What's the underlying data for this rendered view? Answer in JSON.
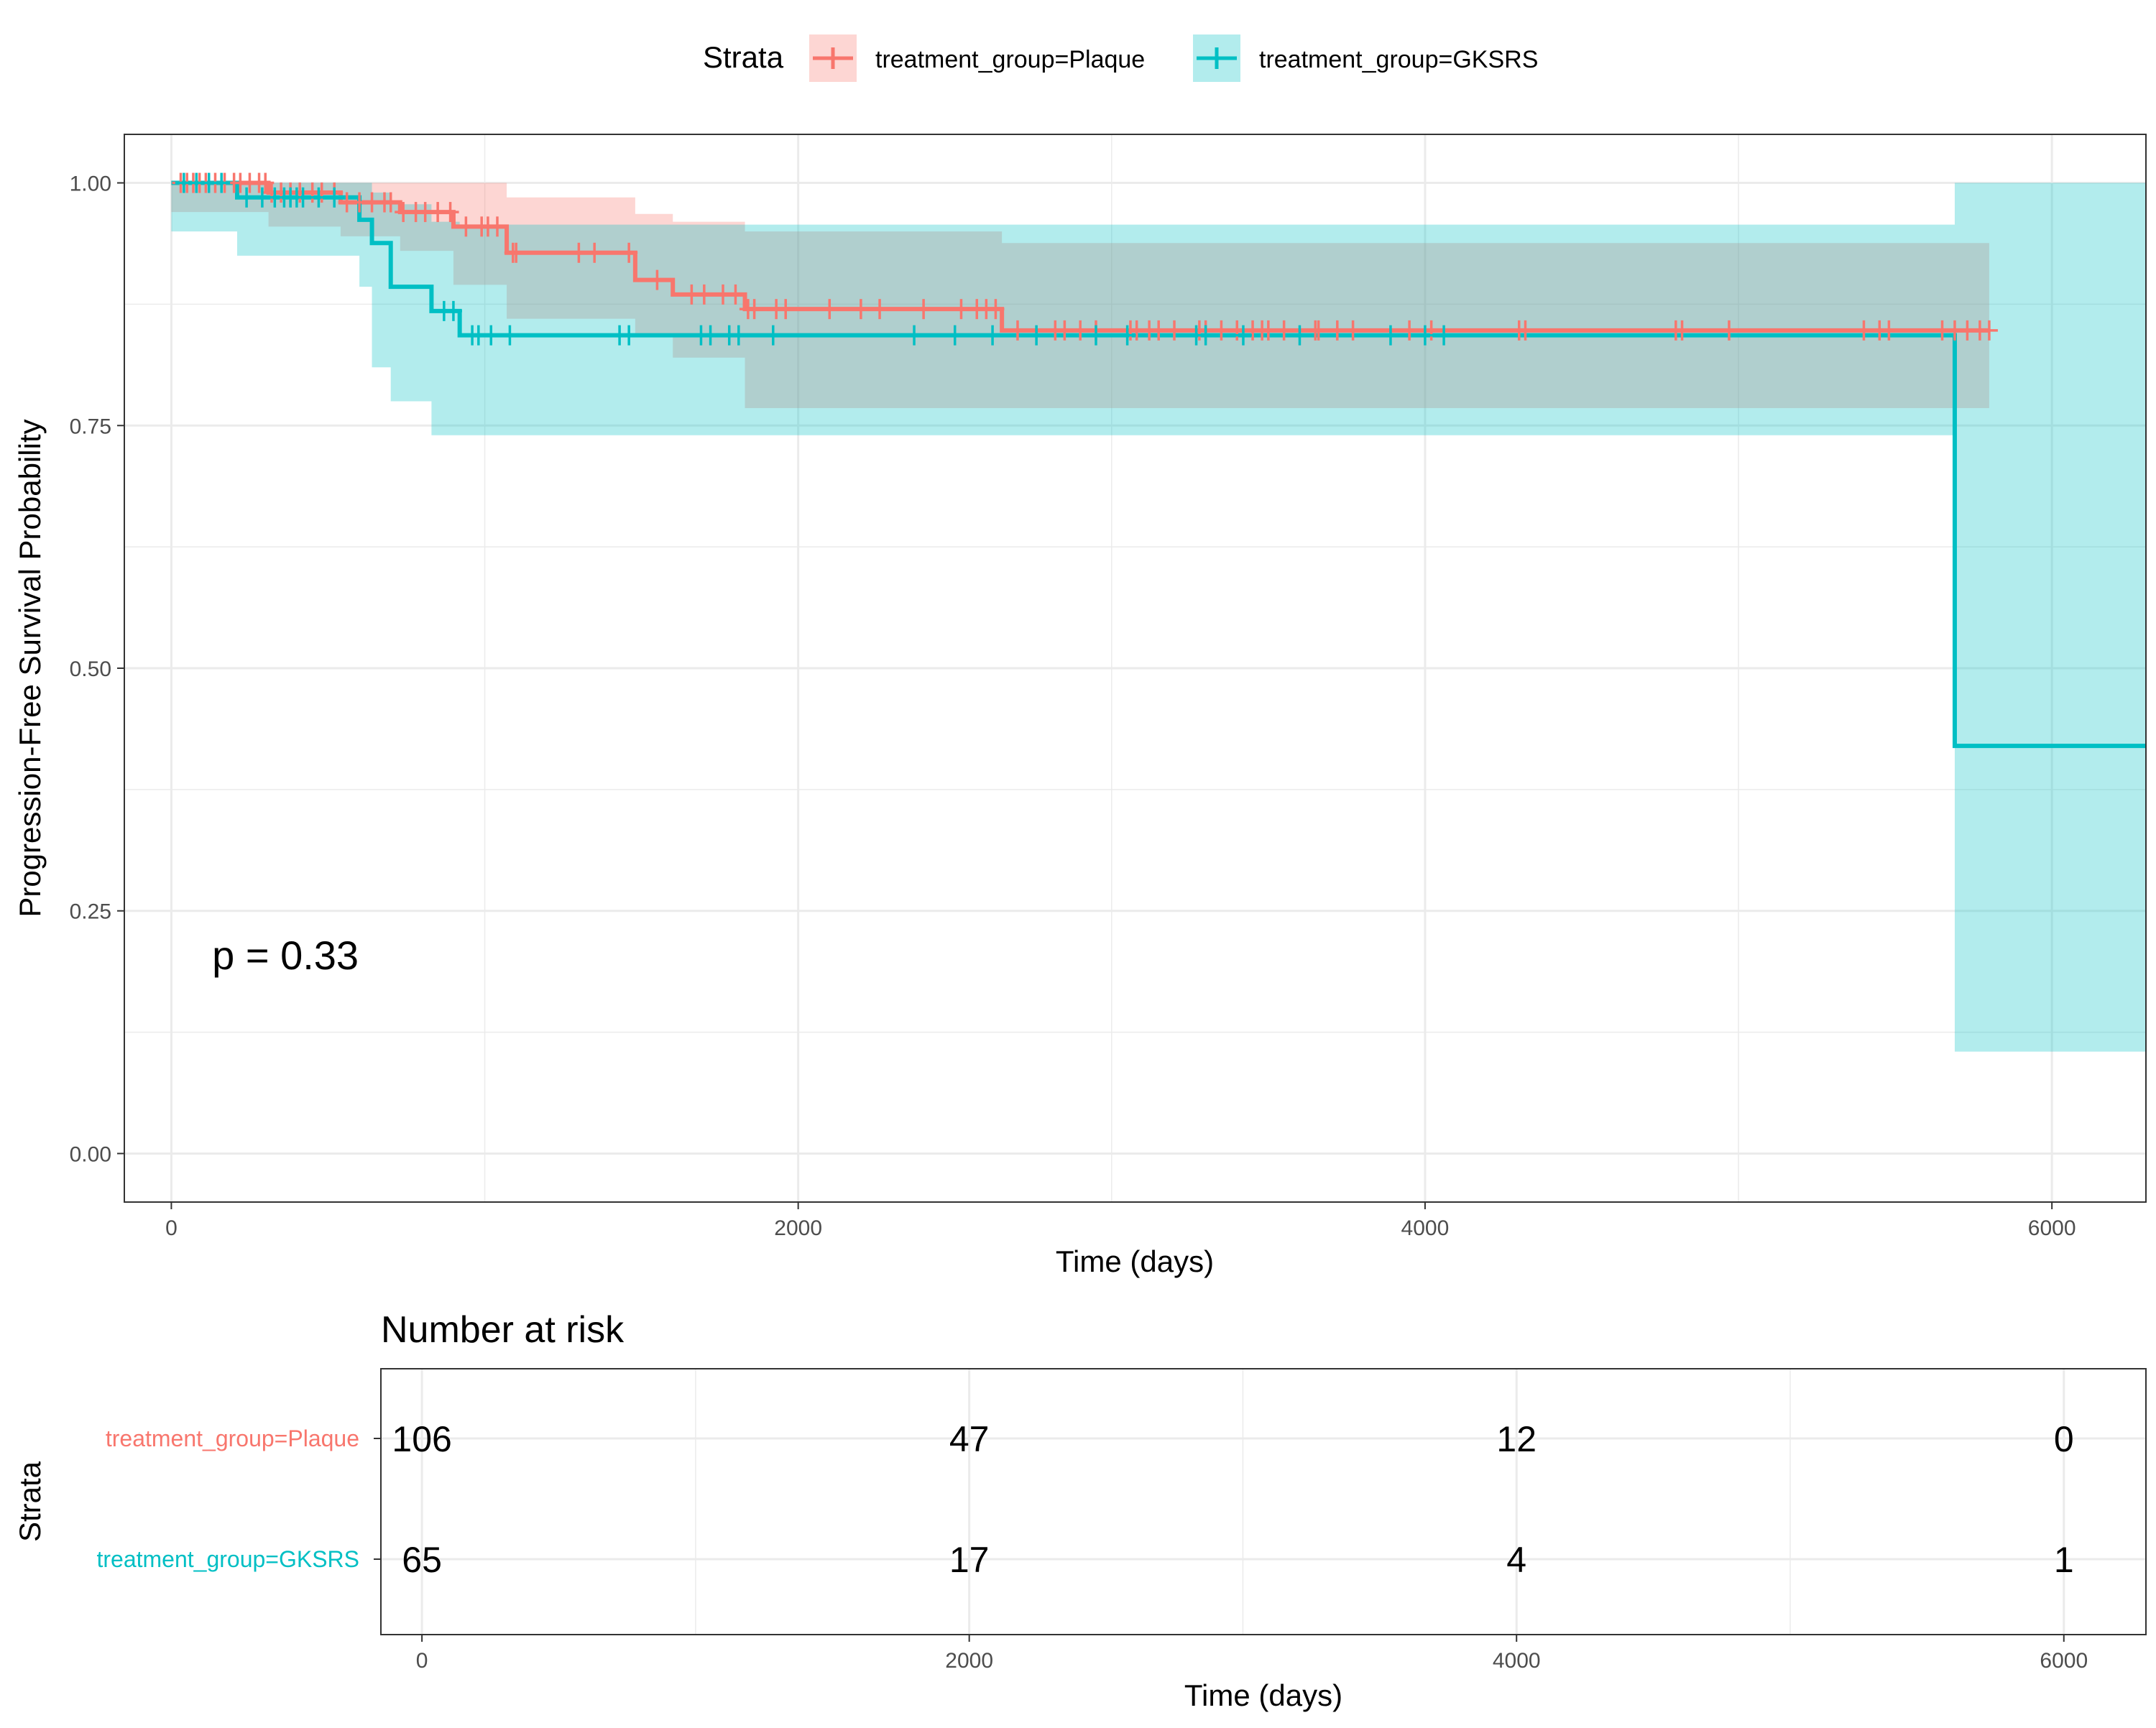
{
  "legend": {
    "title": "Strata",
    "position": "top",
    "items": [
      {
        "label": "treatment_group=Plaque",
        "color": "#F8766D"
      },
      {
        "label": "treatment_group=GKSRS",
        "color": "#00BFC4"
      }
    ]
  },
  "chart_data": {
    "type": "line",
    "subtype": "kaplan-meier",
    "xlabel": "Time (days)",
    "ylabel": "Progression-Free Survival Probability",
    "xlim": [
      -150,
      6300
    ],
    "ylim": [
      -0.05,
      1.05
    ],
    "xticks": [
      "0",
      "2000",
      "4000",
      "6000"
    ],
    "yticks": [
      "0.00",
      "0.25",
      "0.50",
      "0.75",
      "1.00"
    ],
    "grid": true,
    "annotation": {
      "text": "p = 0.33",
      "x": 130,
      "y": 0.19
    },
    "series": [
      {
        "name": "treatment_group=Plaque",
        "color": "#F8766D",
        "steps": [
          [
            0,
            1.0
          ],
          [
            310,
            0.99
          ],
          [
            540,
            0.98
          ],
          [
            730,
            0.97
          ],
          [
            900,
            0.955
          ],
          [
            1070,
            0.928
          ],
          [
            1480,
            0.9
          ],
          [
            1600,
            0.885
          ],
          [
            1830,
            0.87
          ],
          [
            2650,
            0.848
          ],
          [
            5800,
            0.848
          ]
        ],
        "ci": [
          [
            0,
            1.0,
            1.0
          ],
          [
            310,
            1.0,
            0.97
          ],
          [
            540,
            1.0,
            0.955
          ],
          [
            730,
            1.0,
            0.945
          ],
          [
            900,
            1.0,
            0.93
          ],
          [
            1070,
            0.985,
            0.895
          ],
          [
            1480,
            0.968,
            0.86
          ],
          [
            1600,
            0.96,
            0.845
          ],
          [
            1830,
            0.95,
            0.82
          ],
          [
            2650,
            0.938,
            0.768
          ],
          [
            5800,
            0.938,
            0.768
          ]
        ],
        "censor_times": [
          30,
          50,
          70,
          90,
          110,
          140,
          170,
          200,
          220,
          250,
          280,
          300,
          320,
          350,
          380,
          410,
          450,
          480,
          520,
          560,
          600,
          640,
          680,
          700,
          740,
          780,
          810,
          850,
          890,
          940,
          990,
          1010,
          1040,
          1090,
          1100,
          1300,
          1350,
          1460,
          1550,
          1660,
          1700,
          1760,
          1800,
          1840,
          1860,
          1930,
          1960,
          2100,
          2200,
          2260,
          2400,
          2520,
          2570,
          2600,
          2630,
          2700,
          2820,
          2850,
          2900,
          2950,
          3060,
          3080,
          3120,
          3150,
          3200,
          3280,
          3300,
          3350,
          3400,
          3450,
          3480,
          3500,
          3550,
          3650,
          3660,
          3720,
          3770,
          3950,
          4020,
          4300,
          4320,
          4800,
          4820,
          4970,
          5400,
          5450,
          5480,
          5650,
          5690,
          5730,
          5770,
          5800
        ]
      },
      {
        "name": "treatment_group=GKSRS",
        "color": "#00BFC4",
        "steps": [
          [
            0,
            1.0
          ],
          [
            210,
            0.985
          ],
          [
            600,
            0.962
          ],
          [
            640,
            0.938
          ],
          [
            700,
            0.893
          ],
          [
            830,
            0.868
          ],
          [
            920,
            0.843
          ],
          [
            5690,
            0.843
          ],
          [
            5690,
            0.42
          ],
          [
            6300,
            0.42
          ]
        ],
        "ci": [
          [
            0,
            1.0,
            1.0
          ],
          [
            210,
            1.0,
            0.95
          ],
          [
            600,
            1.0,
            0.925
          ],
          [
            640,
            0.99,
            0.893
          ],
          [
            700,
            0.978,
            0.81
          ],
          [
            830,
            0.96,
            0.775
          ],
          [
            920,
            0.957,
            0.74
          ],
          [
            5690,
            0.957,
            0.74
          ],
          [
            5690,
            1.0,
            0.105
          ],
          [
            6300,
            1.0,
            0.105
          ]
        ],
        "censor_times": [
          40,
          80,
          120,
          160,
          240,
          290,
          330,
          360,
          380,
          400,
          420,
          470,
          520,
          870,
          900,
          960,
          980,
          1020,
          1080,
          1430,
          1460,
          1690,
          1720,
          1780,
          1810,
          1920,
          2370,
          2500,
          2620,
          2760,
          2950,
          3050,
          3270,
          3300,
          3420,
          3600,
          3890,
          4000,
          4060
        ]
      }
    ]
  },
  "risk_table": {
    "title": "Number at risk",
    "ylabel": "Strata",
    "xlabel": "Time (days)",
    "xlim": [
      -150,
      6300
    ],
    "times": [
      0,
      2000,
      4000,
      6000
    ],
    "xticks": [
      "0",
      "2000",
      "4000",
      "6000"
    ],
    "rows": [
      {
        "label": "treatment_group=Plaque",
        "color": "#F8766D",
        "values": [
          "106",
          "47",
          "12",
          "0"
        ]
      },
      {
        "label": "treatment_group=GKSRS",
        "color": "#00BFC4",
        "values": [
          "65",
          "17",
          "4",
          "1"
        ]
      }
    ]
  }
}
